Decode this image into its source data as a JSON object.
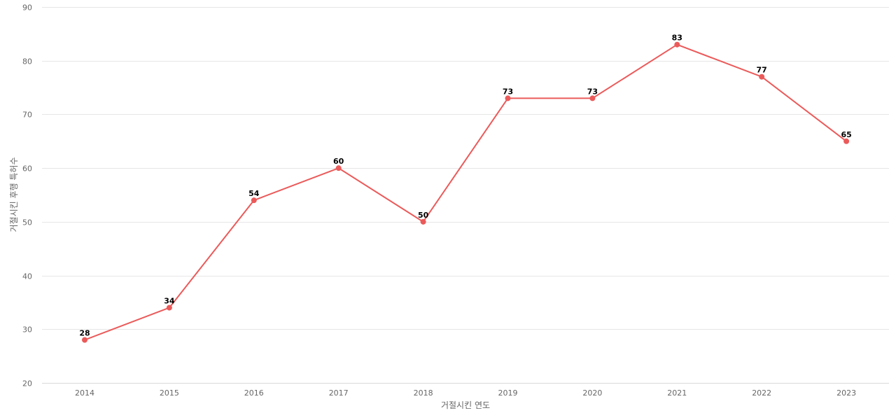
{
  "chart_data": {
    "type": "line",
    "title": "",
    "xlabel": "거절시킨 연도",
    "ylabel": "거절시킨 후행 특허수",
    "categories": [
      "2014",
      "2015",
      "2016",
      "2017",
      "2018",
      "2019",
      "2020",
      "2021",
      "2022",
      "2023"
    ],
    "series": [
      {
        "values": [
          28,
          34,
          54,
          60,
          50,
          73,
          73,
          83,
          77,
          65
        ],
        "color": "#eb5a5a"
      }
    ],
    "ylim": [
      20,
      90
    ],
    "yticks": [
      20,
      30,
      40,
      50,
      60,
      70,
      80,
      90
    ],
    "grid": true,
    "legend": "none",
    "data_labels": true
  }
}
